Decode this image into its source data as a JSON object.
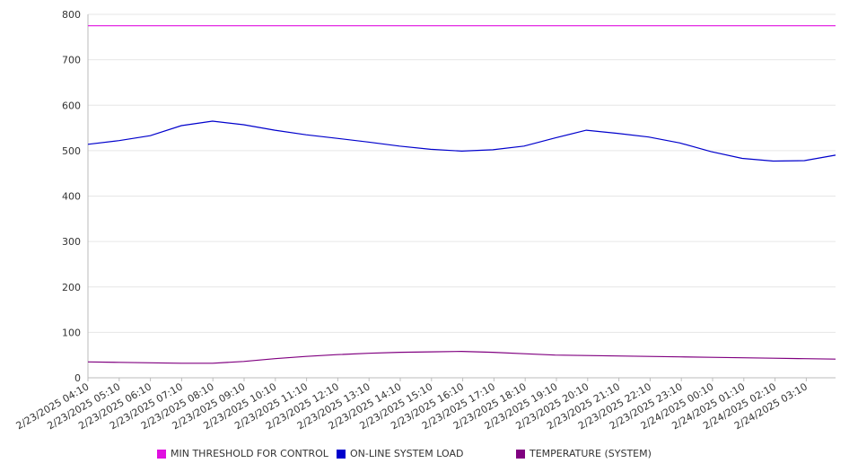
{
  "chart_data": {
    "type": "line",
    "ylim": [
      0,
      800
    ],
    "y_ticks": [
      "0",
      "100",
      "200",
      "300",
      "400",
      "500",
      "600",
      "700",
      "800"
    ],
    "x_tick_labels": [
      "2/23/2025 04:10",
      "2/23/2025 05:10",
      "2/23/2025 06:10",
      "2/23/2025 07:10",
      "2/23/2025 08:10",
      "2/23/2025 09:10",
      "2/23/2025 10:10",
      "2/23/2025 11:10",
      "2/23/2025 12:10",
      "2/23/2025 13:10",
      "2/23/2025 14:10",
      "2/23/2025 15:10",
      "2/23/2025 16:10",
      "2/23/2025 17:10",
      "2/23/2025 18:10",
      "2/23/2025 19:10",
      "2/23/2025 20:10",
      "2/23/2025 21:10",
      "2/23/2025 22:10",
      "2/23/2025 23:10",
      "2/24/2025 00:10",
      "2/24/2025 01:10",
      "2/24/2025 02:10",
      "2/24/2025 03:10"
    ],
    "grid": true,
    "legend_position": "bottom",
    "series": [
      {
        "name": "MIN THRESHOLD FOR CONTROL",
        "color": "#e010e0",
        "values": [
          775,
          775,
          775,
          775,
          775,
          775,
          775,
          775,
          775,
          775,
          775,
          775,
          775,
          775,
          775,
          775,
          775,
          775,
          775,
          775,
          775,
          775,
          775,
          775,
          775
        ]
      },
      {
        "name": "ON-LINE SYSTEM LOAD",
        "color": "#0000cc",
        "values": [
          514,
          522,
          533,
          555,
          565,
          557,
          545,
          535,
          527,
          519,
          510,
          503,
          499,
          502,
          510,
          528,
          545,
          538,
          530,
          517,
          498,
          483,
          477,
          478,
          490
        ]
      },
      {
        "name": "TEMPERATURE (SYSTEM)",
        "color": "#800080",
        "values": [
          35,
          34,
          33,
          32,
          32,
          36,
          42,
          47,
          51,
          54,
          56,
          57,
          58,
          56,
          53,
          50,
          49,
          48,
          47,
          46,
          45,
          44,
          43,
          42,
          41
        ]
      }
    ]
  }
}
